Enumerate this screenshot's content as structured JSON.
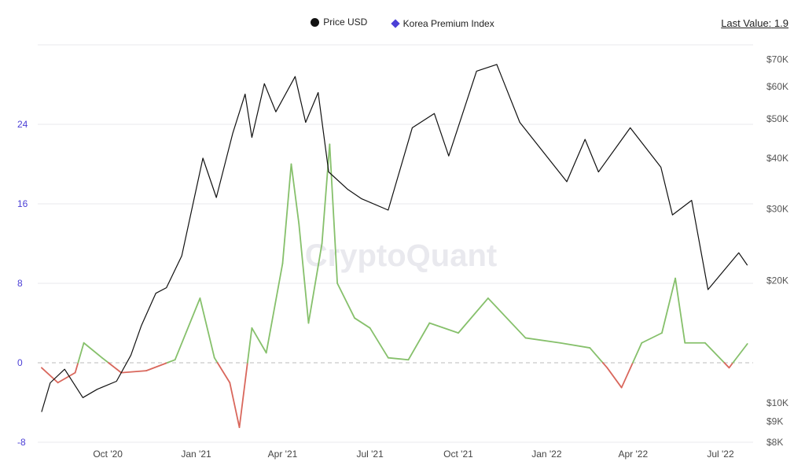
{
  "legend": {
    "price_label": "Price USD",
    "index_label": "Korea Premium Index"
  },
  "last_value": {
    "label": "Last Value:",
    "value": "1.9"
  },
  "watermark": "CryptoQuant",
  "colors": {
    "price": "#111111",
    "index_positive": "#86c06b",
    "index_negative": "#d9675c",
    "index_legend": "#4b3fd6",
    "grid": "#e8e8ec",
    "zero_line": "#bbbbbb"
  },
  "chart_data": {
    "type": "line",
    "x_ticks": [
      "Oct '20",
      "Jan '21",
      "Apr '21",
      "Jul '21",
      "Oct '21",
      "Jan '22",
      "Apr '22",
      "Jul '22"
    ],
    "left_axis": {
      "ticks": [
        "24",
        "16",
        "8",
        "0",
        "-8"
      ],
      "ylim": [
        -8,
        32
      ]
    },
    "right_axis": {
      "ticks": [
        "$70K",
        "$60K",
        "$50K",
        "$40K",
        "$30K",
        "$20K",
        "$10K",
        "$9K",
        "$8K"
      ],
      "scale": "log",
      "ylim": [
        8000,
        76000
      ]
    },
    "series": [
      {
        "name": "Price USD",
        "axis": "right",
        "points": [
          [
            "2020-07-24",
            9500
          ],
          [
            "2020-08-02",
            11200
          ],
          [
            "2020-08-17",
            12100
          ],
          [
            "2020-09-05",
            10300
          ],
          [
            "2020-09-20",
            10800
          ],
          [
            "2020-10-10",
            11300
          ],
          [
            "2020-10-25",
            13100
          ],
          [
            "2020-11-05",
            15500
          ],
          [
            "2020-11-20",
            18600
          ],
          [
            "2020-12-01",
            19200
          ],
          [
            "2020-12-17",
            23000
          ],
          [
            "2021-01-08",
            40000
          ],
          [
            "2021-01-22",
            32000
          ],
          [
            "2021-02-08",
            46000
          ],
          [
            "2021-02-21",
            57500
          ],
          [
            "2021-02-28",
            45000
          ],
          [
            "2021-03-13",
            61000
          ],
          [
            "2021-03-25",
            52000
          ],
          [
            "2021-04-14",
            63500
          ],
          [
            "2021-04-25",
            49000
          ],
          [
            "2021-05-08",
            58000
          ],
          [
            "2021-05-19",
            37000
          ],
          [
            "2021-06-08",
            33500
          ],
          [
            "2021-06-22",
            31800
          ],
          [
            "2021-07-20",
            29800
          ],
          [
            "2021-08-14",
            47500
          ],
          [
            "2021-09-06",
            51500
          ],
          [
            "2021-09-21",
            40500
          ],
          [
            "2021-10-20",
            65500
          ],
          [
            "2021-11-10",
            68000
          ],
          [
            "2021-12-04",
            49000
          ],
          [
            "2022-01-22",
            35000
          ],
          [
            "2022-02-10",
            44500
          ],
          [
            "2022-02-24",
            37000
          ],
          [
            "2022-03-29",
            47500
          ],
          [
            "2022-04-30",
            38000
          ],
          [
            "2022-05-12",
            29000
          ],
          [
            "2022-06-01",
            31500
          ],
          [
            "2022-06-18",
            19000
          ],
          [
            "2022-07-07",
            21500
          ],
          [
            "2022-07-20",
            23400
          ],
          [
            "2022-07-29",
            21800
          ]
        ]
      },
      {
        "name": "Korea Premium Index",
        "axis": "left",
        "points": [
          [
            "2020-07-24",
            -0.5
          ],
          [
            "2020-08-10",
            -2.0
          ],
          [
            "2020-08-28",
            -1.0
          ],
          [
            "2020-09-06",
            2.0
          ],
          [
            "2020-09-25",
            0.5
          ],
          [
            "2020-10-15",
            -1.0
          ],
          [
            "2020-11-10",
            -0.8
          ],
          [
            "2020-12-10",
            0.3
          ],
          [
            "2021-01-05",
            6.5
          ],
          [
            "2021-01-20",
            0.5
          ],
          [
            "2021-02-05",
            -2.0
          ],
          [
            "2021-02-15",
            -6.5
          ],
          [
            "2021-02-28",
            3.5
          ],
          [
            "2021-03-15",
            1.0
          ],
          [
            "2021-04-01",
            10.0
          ],
          [
            "2021-04-10",
            20.0
          ],
          [
            "2021-04-18",
            14.0
          ],
          [
            "2021-04-28",
            4.0
          ],
          [
            "2021-05-12",
            12.0
          ],
          [
            "2021-05-20",
            22.0
          ],
          [
            "2021-05-28",
            8.0
          ],
          [
            "2021-06-15",
            4.5
          ],
          [
            "2021-07-01",
            3.5
          ],
          [
            "2021-07-20",
            0.5
          ],
          [
            "2021-08-10",
            0.3
          ],
          [
            "2021-09-01",
            4.0
          ],
          [
            "2021-10-01",
            3.0
          ],
          [
            "2021-11-01",
            6.5
          ],
          [
            "2021-12-10",
            2.5
          ],
          [
            "2022-01-15",
            2.0
          ],
          [
            "2022-02-15",
            1.5
          ],
          [
            "2022-03-05",
            -0.5
          ],
          [
            "2022-03-20",
            -2.5
          ],
          [
            "2022-04-10",
            2.0
          ],
          [
            "2022-05-01",
            3.0
          ],
          [
            "2022-05-15",
            8.5
          ],
          [
            "2022-05-25",
            2.0
          ],
          [
            "2022-06-15",
            2.0
          ],
          [
            "2022-07-10",
            -0.5
          ],
          [
            "2022-07-29",
            1.9
          ]
        ]
      }
    ],
    "grid": true,
    "legend_position": "top-center"
  }
}
